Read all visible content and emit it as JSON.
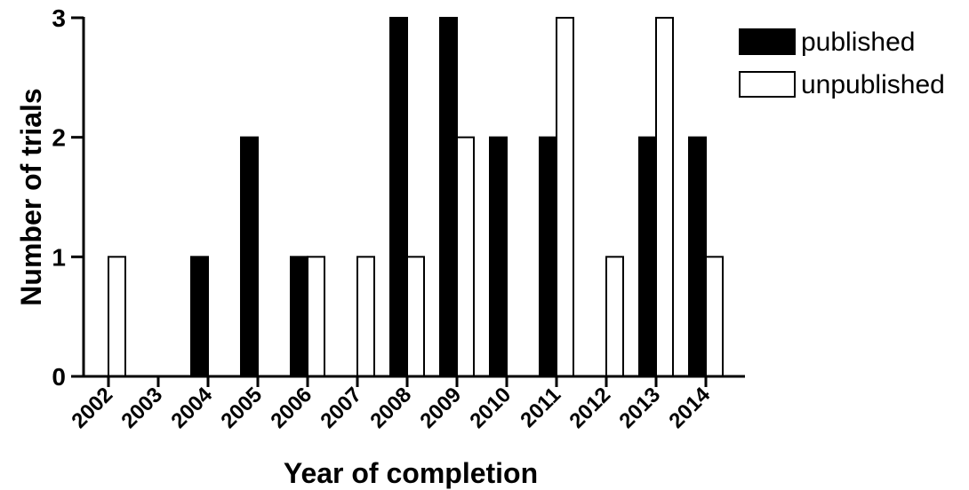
{
  "chart_data": {
    "type": "bar",
    "categories": [
      "2002",
      "2003",
      "2004",
      "2005",
      "2006",
      "2007",
      "2008",
      "2009",
      "2010",
      "2011",
      "2012",
      "2013",
      "2014"
    ],
    "series": [
      {
        "name": "published",
        "values": [
          0,
          0,
          1,
          2,
          1,
          0,
          3,
          3,
          2,
          2,
          0,
          2,
          2
        ],
        "color": "#000000"
      },
      {
        "name": "unpublished",
        "values": [
          1,
          0,
          0,
          0,
          1,
          1,
          1,
          2,
          0,
          3,
          1,
          3,
          1
        ],
        "color": "#ffffff"
      }
    ],
    "xlabel": "Year of completion",
    "ylabel": "Number of trials",
    "ylim": [
      0,
      3
    ],
    "yticks": [
      "0",
      "1",
      "2",
      "3"
    ],
    "grid": false,
    "legend_position": "top-right"
  }
}
